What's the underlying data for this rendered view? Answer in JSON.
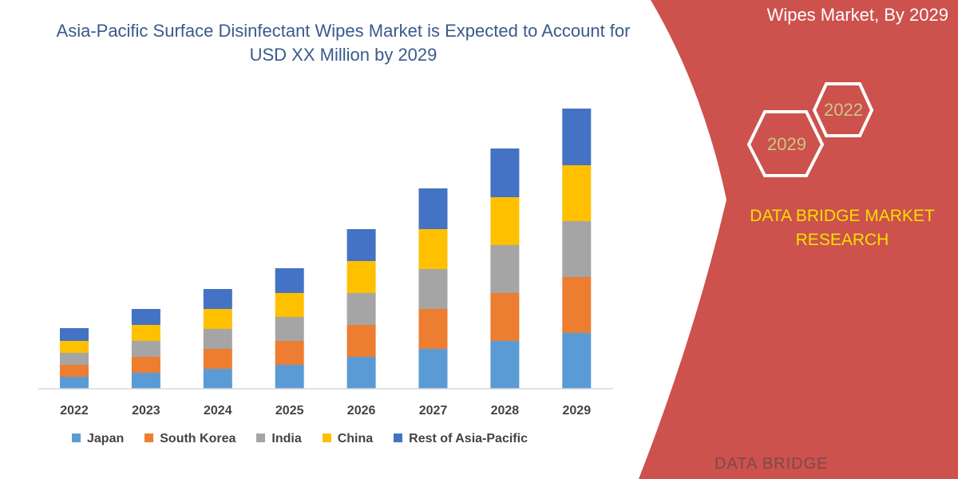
{
  "header": {
    "right_title": "Wipes Market, By 2029",
    "hex_labels": [
      "2022",
      "2029"
    ],
    "brand": "DATA BRIDGE MARKET RESEARCH",
    "logo_text": "DATA BRIDGE"
  },
  "colors": {
    "panel": "#cd514d",
    "japan": "#5b9bd5",
    "south_korea": "#ed7d31",
    "india": "#a5a5a5",
    "china": "#ffc000",
    "rest": "#4472c4"
  },
  "chart_data": {
    "type": "bar",
    "stacked": true,
    "title": "Asia-Pacific Surface Disinfectant Wipes Market is Expected to Account for USD XX Million by 2029",
    "categories": [
      "2022",
      "2023",
      "2024",
      "2025",
      "2026",
      "2027",
      "2028",
      "2029"
    ],
    "series": [
      {
        "name": "Japan",
        "color": "#5b9bd5",
        "values": [
          1.5,
          2,
          2.5,
          3,
          4,
          5,
          6,
          7
        ]
      },
      {
        "name": "South Korea",
        "color": "#ed7d31",
        "values": [
          1.5,
          2,
          2.5,
          3,
          4,
          5,
          6,
          7
        ]
      },
      {
        "name": "India",
        "color": "#a5a5a5",
        "values": [
          1.5,
          2,
          2.5,
          3,
          4,
          5,
          6,
          7
        ]
      },
      {
        "name": "China",
        "color": "#ffc000",
        "values": [
          1.5,
          2,
          2.5,
          3,
          4,
          5,
          6,
          7
        ]
      },
      {
        "name": "Rest of Asia-Pacific",
        "color": "#4472c4",
        "values": [
          1.6,
          2,
          2.5,
          3.1,
          4,
          5.1,
          6.1,
          7.1
        ]
      }
    ],
    "grid": false,
    "legend": "bottom",
    "yaxis_shown": false
  }
}
